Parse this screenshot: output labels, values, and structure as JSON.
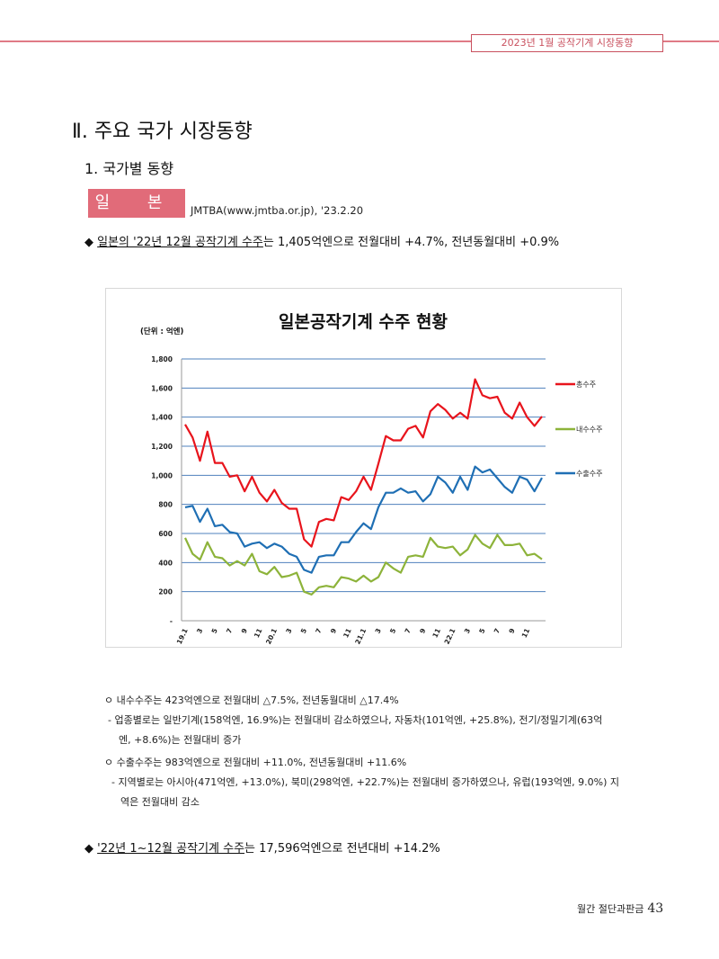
{
  "header": {
    "running_title": "2023년 1월 공작기계 시장동향"
  },
  "section_title": "Ⅱ. 주요 국가 시장동향",
  "subsection_title": "1. 국가별 동향",
  "country_tag": "일 본",
  "source": "JMTBA(www.jmtba.or.jp), '23.2.20",
  "bullet1": {
    "marker": "◆",
    "underlined": "일본의 '22년 12월 공작기계 수주",
    "rest": "는 1,405억엔으로 전월대비 +4.7%, 전년동월대비 +0.9%"
  },
  "notes": [
    {
      "text": "ㅇ 내수수주는 423억엔으로 전월대비 △7.5%, 전년동월대비 △17.4%"
    },
    {
      "text": "- 업종별로는 일반기계(158억엔, 16.9%)는 전월대비 감소하였으나, 자동차(101억엔, +25.8%), 전기/정밀기계(63억"
    },
    {
      "text": "엔, +8.6%)는 전월대비 증가"
    },
    {
      "text": "ㅇ 수출수주는 983억엔으로 전월대비 +11.0%, 전년동월대비 +11.6%"
    },
    {
      "text": "- 지역별로는 아시아(471억엔, +13.0%), 북미(298억엔, +22.7%)는 전월대비 증가하였으나, 유럽(193억엔, 9.0%) 지"
    },
    {
      "text": "역은 전월대비 감소"
    }
  ],
  "bullet2": {
    "marker": "◆",
    "underlined": "'22년 1~12월 공작기계 수주",
    "rest": "는 17,596억엔으로 전년대비 +14.2%"
  },
  "footer": {
    "label": "월간 절단과판금",
    "page": "43"
  },
  "colors": {
    "accent": "#e16b79",
    "total": "#e8141c",
    "domestic": "#8db33a",
    "export": "#1f6fb4",
    "grid": "#4f81bd"
  },
  "chart_data": {
    "type": "line",
    "title": "일본공작기계 수주 현황",
    "unit_label": "(단위 : 억엔)",
    "ylim": [
      0,
      1800
    ],
    "yticks": [
      0,
      200,
      400,
      600,
      800,
      1000,
      1200,
      1400,
      1600,
      1800
    ],
    "ytick_labels": [
      "-",
      "200",
      "400",
      "600",
      "800",
      "1,000",
      "1,200",
      "1,400",
      "1,600",
      "1,800"
    ],
    "x_labels": [
      "19.1",
      "3",
      "5",
      "7",
      "9",
      "11",
      "20.1",
      "3",
      "5",
      "7",
      "9",
      "11",
      "21.1",
      "3",
      "5",
      "7",
      "9",
      "11",
      "22.1",
      "3",
      "5",
      "7",
      "9",
      "11"
    ],
    "grid": true,
    "legend_position": "right",
    "series": [
      {
        "name": "총수주",
        "color": "#e8141c",
        "values": [
          1350,
          1260,
          1100,
          1300,
          1085,
          1085,
          990,
          1000,
          890,
          990,
          880,
          820,
          900,
          810,
          770,
          770,
          560,
          510,
          680,
          700,
          690,
          850,
          830,
          890,
          990,
          900,
          1080,
          1270,
          1240,
          1240,
          1320,
          1340,
          1260,
          1440,
          1490,
          1450,
          1390,
          1430,
          1390,
          1660,
          1550,
          1530,
          1540,
          1430,
          1390,
          1500,
          1400,
          1340,
          1405
        ]
      },
      {
        "name": "내수수주",
        "color": "#8db33a",
        "values": [
          570,
          460,
          420,
          540,
          440,
          430,
          380,
          410,
          380,
          460,
          340,
          320,
          370,
          300,
          310,
          330,
          200,
          180,
          230,
          240,
          230,
          300,
          290,
          270,
          310,
          270,
          300,
          400,
          360,
          330,
          440,
          450,
          440,
          570,
          510,
          500,
          510,
          450,
          490,
          590,
          530,
          500,
          590,
          520,
          520,
          530,
          450,
          460,
          423
        ]
      },
      {
        "name": "수출수주",
        "color": "#1f6fb4",
        "values": [
          780,
          790,
          680,
          770,
          650,
          660,
          610,
          600,
          510,
          530,
          540,
          500,
          530,
          510,
          460,
          440,
          350,
          330,
          440,
          450,
          450,
          540,
          540,
          610,
          670,
          630,
          780,
          880,
          880,
          910,
          880,
          890,
          820,
          870,
          990,
          950,
          880,
          990,
          900,
          1060,
          1020,
          1040,
          980,
          920,
          880,
          990,
          970,
          890,
          983
        ]
      }
    ]
  }
}
